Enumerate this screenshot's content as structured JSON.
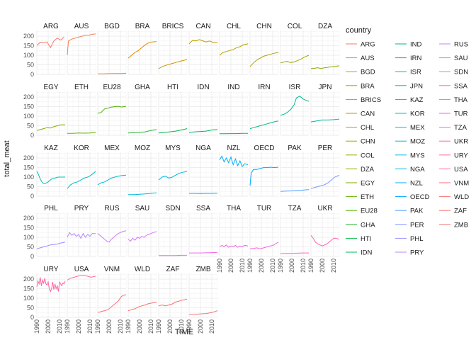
{
  "chart_data": {
    "type": "line",
    "facet": "wrap",
    "xlabel": "TIME",
    "ylabel": "total_meat",
    "xlim": [
      1990,
      2015
    ],
    "ylim": [
      0,
      230
    ],
    "x_ticks": [
      1990,
      2000,
      2010
    ],
    "y_ticks": [
      0,
      50,
      100,
      150,
      200
    ],
    "x_tick_labels": [
      "1990",
      "2000",
      "2010"
    ],
    "y_tick_labels": [
      "0",
      "50",
      "100",
      "150",
      "200"
    ],
    "grid": true,
    "legend_title": "country",
    "legend_position": "right",
    "series": [
      {
        "name": "ARG",
        "color": "#F8766D",
        "x": [
          1990,
          1993,
          1996,
          1999,
          2002,
          2005,
          2008,
          2011,
          2014
        ],
        "y": [
          152,
          168,
          165,
          170,
          140,
          175,
          190,
          180,
          195
        ]
      },
      {
        "name": "AUS",
        "color": "#F27D52",
        "x": [
          1990,
          1991,
          1994,
          1997,
          2000,
          2003,
          2006,
          2009,
          2012,
          2015
        ],
        "y": [
          100,
          175,
          185,
          190,
          195,
          200,
          205,
          205,
          210,
          212
        ]
      },
      {
        "name": "BGD",
        "color": "#E8853A",
        "x": [
          1990,
          1995,
          2000,
          2005,
          2010,
          2015
        ],
        "y": [
          3,
          3,
          4,
          4,
          5,
          6
        ]
      },
      {
        "name": "BRA",
        "color": "#DE8C00",
        "x": [
          1990,
          1993,
          1996,
          1999,
          2002,
          2005,
          2008,
          2011,
          2015
        ],
        "y": [
          85,
          100,
          115,
          125,
          140,
          155,
          165,
          170,
          172
        ]
      },
      {
        "name": "BRICS",
        "color": "#D09400",
        "x": [
          1990,
          1993,
          1996,
          1999,
          2002,
          2005,
          2008,
          2011,
          2015
        ],
        "y": [
          30,
          40,
          47,
          52,
          57,
          62,
          67,
          72,
          78
        ]
      },
      {
        "name": "CAN",
        "color": "#C19A00",
        "x": [
          1990,
          1993,
          1996,
          1999,
          2002,
          2005,
          2008,
          2011,
          2015
        ],
        "y": [
          160,
          178,
          175,
          182,
          176,
          170,
          175,
          168,
          165
        ]
      },
      {
        "name": "CHL",
        "color": "#B79F00",
        "x": [
          1990,
          1993,
          1996,
          1999,
          2002,
          2005,
          2008,
          2011,
          2015
        ],
        "y": [
          100,
          115,
          120,
          125,
          130,
          140,
          145,
          155,
          160
        ]
      },
      {
        "name": "CHN",
        "color": "#ABA300",
        "x": [
          1990,
          1993,
          1996,
          1999,
          2002,
          2005,
          2008,
          2011,
          2015
        ],
        "y": [
          40,
          60,
          75,
          85,
          95,
          100,
          105,
          110,
          115
        ]
      },
      {
        "name": "COL",
        "color": "#9CA700",
        "x": [
          1990,
          1993,
          1996,
          1999,
          2002,
          2005,
          2008,
          2011,
          2015
        ],
        "y": [
          60,
          65,
          68,
          62,
          65,
          72,
          80,
          90,
          100
        ]
      },
      {
        "name": "DZA",
        "color": "#8AAB00",
        "x": [
          1990,
          1993,
          1996,
          1999,
          2002,
          2005,
          2008,
          2011,
          2015
        ],
        "y": [
          30,
          32,
          35,
          30,
          35,
          37,
          40,
          42,
          45
        ]
      },
      {
        "name": "EGY",
        "color": "#7CAE00",
        "x": [
          1990,
          1993,
          1996,
          1999,
          2002,
          2005,
          2008,
          2011,
          2015
        ],
        "y": [
          25,
          30,
          35,
          40,
          38,
          45,
          50,
          55,
          55
        ]
      },
      {
        "name": "ETH",
        "color": "#66B100",
        "x": [
          1990,
          1995,
          2000,
          2005,
          2010,
          2015
        ],
        "y": [
          10,
          10,
          12,
          11,
          12,
          14
        ]
      },
      {
        "name": "EU28",
        "color": "#4EB300",
        "x": [
          1990,
          1993,
          1996,
          1999,
          2002,
          2005,
          2008,
          2011,
          2015
        ],
        "y": [
          115,
          120,
          138,
          142,
          148,
          150,
          152,
          148,
          152
        ]
      },
      {
        "name": "GHA",
        "color": "#2BB534",
        "x": [
          1990,
          1995,
          2000,
          2005,
          2010,
          2015
        ],
        "y": [
          12,
          14,
          15,
          18,
          25,
          30
        ]
      },
      {
        "name": "HTI",
        "color": "#00B649",
        "x": [
          1990,
          1995,
          2000,
          2005,
          2010,
          2015
        ],
        "y": [
          12,
          15,
          18,
          22,
          28,
          35
        ]
      },
      {
        "name": "IDN",
        "color": "#00B75F",
        "x": [
          1990,
          1995,
          2000,
          2005,
          2010,
          2015
        ],
        "y": [
          15,
          18,
          20,
          22,
          28,
          30
        ]
      },
      {
        "name": "IND",
        "color": "#00B872",
        "x": [
          1990,
          1995,
          2000,
          2005,
          2010,
          2015
        ],
        "y": [
          8,
          8,
          9,
          9,
          10,
          10
        ]
      },
      {
        "name": "IRN",
        "color": "#00B984",
        "x": [
          1990,
          1993,
          1996,
          1999,
          2002,
          2005,
          2008,
          2011,
          2015
        ],
        "y": [
          35,
          40,
          45,
          50,
          55,
          60,
          65,
          70,
          75
        ]
      },
      {
        "name": "ISR",
        "color": "#00BA95",
        "x": [
          1990,
          1993,
          1996,
          1999,
          2002,
          2004,
          2007,
          2010,
          2013,
          2015
        ],
        "y": [
          105,
          110,
          120,
          135,
          160,
          195,
          205,
          190,
          182,
          178
        ]
      },
      {
        "name": "JPN",
        "color": "#00BBA5",
        "x": [
          1990,
          1995,
          2000,
          2005,
          2010,
          2015
        ],
        "y": [
          70,
          75,
          80,
          80,
          82,
          85
        ]
      },
      {
        "name": "KAZ",
        "color": "#00BCB4",
        "x": [
          1990,
          1991,
          1993,
          1995,
          1997,
          2000,
          2003,
          2006,
          2009,
          2012,
          2015
        ],
        "y": [
          130,
          120,
          90,
          70,
          65,
          75,
          90,
          95,
          100,
          100,
          100
        ]
      },
      {
        "name": "KOR",
        "color": "#00BCC2",
        "x": [
          1990,
          1993,
          1996,
          1999,
          2002,
          2005,
          2008,
          2011,
          2015
        ],
        "y": [
          40,
          60,
          70,
          75,
          85,
          95,
          100,
          110,
          130
        ]
      },
      {
        "name": "MEX",
        "color": "#00BBCF",
        "x": [
          1990,
          1993,
          1996,
          1999,
          2002,
          2005,
          2008,
          2011,
          2015
        ],
        "y": [
          60,
          70,
          75,
          85,
          95,
          100,
          105,
          108,
          110
        ]
      },
      {
        "name": "MOZ",
        "color": "#00B9DC",
        "x": [
          1990,
          1995,
          2000,
          2005,
          2010,
          2015
        ],
        "y": [
          8,
          8,
          10,
          12,
          15,
          18
        ]
      },
      {
        "name": "MYS",
        "color": "#00B6E8",
        "x": [
          1990,
          1993,
          1996,
          1999,
          2002,
          2005,
          2008,
          2011,
          2015
        ],
        "y": [
          85,
          100,
          105,
          95,
          100,
          110,
          120,
          125,
          130
        ]
      },
      {
        "name": "NGA",
        "color": "#00B2F3",
        "x": [
          1990,
          1995,
          2000,
          2005,
          2010,
          2015
        ],
        "y": [
          15,
          15,
          14,
          15,
          15,
          16
        ]
      },
      {
        "name": "NZL",
        "color": "#00ADFA",
        "x": [
          1990,
          1992,
          1994,
          1996,
          1998,
          2000,
          2002,
          2004,
          2006,
          2008,
          2010,
          2012,
          2015
        ],
        "y": [
          190,
          210,
          180,
          200,
          175,
          205,
          165,
          195,
          160,
          185,
          155,
          170,
          165
        ]
      },
      {
        "name": "OECD",
        "color": "#00A6FF",
        "x": [
          1990,
          1991,
          1993,
          1996,
          1999,
          2002,
          2005,
          2008,
          2011,
          2015
        ],
        "y": [
          55,
          120,
          140,
          140,
          145,
          150,
          150,
          152,
          150,
          152
        ]
      },
      {
        "name": "PAK",
        "color": "#529EFF",
        "x": [
          1990,
          1995,
          2000,
          2005,
          2010,
          2015
        ],
        "y": [
          25,
          27,
          28,
          30,
          32,
          35
        ]
      },
      {
        "name": "PER",
        "color": "#7B95FF",
        "x": [
          1990,
          1993,
          1996,
          1999,
          2002,
          2005,
          2008,
          2011,
          2015
        ],
        "y": [
          40,
          45,
          50,
          55,
          60,
          70,
          85,
          100,
          110
        ]
      },
      {
        "name": "PHL",
        "color": "#9A8DFF",
        "x": [
          1990,
          1993,
          1996,
          1999,
          2002,
          2005,
          2008,
          2011,
          2015
        ],
        "y": [
          40,
          45,
          50,
          55,
          60,
          62,
          65,
          70,
          75
        ]
      },
      {
        "name": "PRY",
        "color": "#B385FF",
        "x": [
          1990,
          1992,
          1994,
          1996,
          1998,
          2000,
          2002,
          2004,
          2006,
          2008,
          2010,
          2012,
          2015
        ],
        "y": [
          100,
          125,
          110,
          120,
          105,
          115,
          95,
          120,
          100,
          115,
          105,
          120,
          120
        ]
      },
      {
        "name": "RUS",
        "color": "#C77CFF",
        "x": [
          1990,
          1992,
          1994,
          1996,
          1998,
          2000,
          2002,
          2004,
          2006,
          2008,
          2010,
          2012,
          2015
        ],
        "y": [
          120,
          110,
          100,
          90,
          80,
          75,
          90,
          100,
          110,
          120,
          125,
          130,
          135
        ]
      },
      {
        "name": "SAU",
        "color": "#D774FD",
        "x": [
          1990,
          1992,
          1994,
          1996,
          1998,
          2000,
          2002,
          2004,
          2006,
          2008,
          2010,
          2012,
          2015
        ],
        "y": [
          90,
          80,
          95,
          85,
          100,
          95,
          105,
          100,
          110,
          115,
          120,
          125,
          130
        ]
      },
      {
        "name": "SDN",
        "color": "#E46DF6",
        "x": [
          1990,
          1995,
          2000,
          2005,
          2010,
          2015
        ],
        "y": [
          5,
          5,
          5,
          5,
          6,
          6
        ]
      },
      {
        "name": "SSA",
        "color": "#EE67EC",
        "x": [
          1990,
          1995,
          2000,
          2005,
          2010,
          2015
        ],
        "y": [
          18,
          18,
          18,
          19,
          20,
          21
        ]
      },
      {
        "name": "THA",
        "color": "#F663E0",
        "x": [
          1990,
          1992,
          1994,
          1996,
          1998,
          2000,
          2002,
          2004,
          2006,
          2008,
          2010,
          2012,
          2015
        ],
        "y": [
          50,
          58,
          52,
          60,
          48,
          55,
          50,
          58,
          48,
          55,
          50,
          58,
          55
        ]
      },
      {
        "name": "TUR",
        "color": "#FC61D3",
        "x": [
          1990,
          1993,
          1996,
          1999,
          2002,
          2005,
          2008,
          2011,
          2015
        ],
        "y": [
          40,
          42,
          45,
          40,
          45,
          50,
          55,
          60,
          75
        ]
      },
      {
        "name": "TZA",
        "color": "#FF61C4",
        "x": [
          1990,
          1995,
          2000,
          2005,
          2010,
          2015
        ],
        "y": [
          15,
          16,
          16,
          17,
          18,
          18
        ]
      },
      {
        "name": "UKR",
        "color": "#FF63B4",
        "x": [
          1990,
          1992,
          1994,
          1996,
          1998,
          2000,
          2002,
          2004,
          2006,
          2008,
          2010,
          2012,
          2015
        ],
        "y": [
          110,
          95,
          75,
          65,
          60,
          55,
          60,
          65,
          75,
          85,
          95,
          95,
          90
        ]
      },
      {
        "name": "URY",
        "color": "#FF66A3",
        "x": [
          1990,
          1991,
          1992,
          1993,
          1994,
          1995,
          1996,
          1997,
          1998,
          1999,
          2000,
          2001,
          2002,
          2003,
          2004,
          2005,
          2006,
          2007,
          2008,
          2009,
          2010,
          2011,
          2012,
          2013,
          2014,
          2015
        ],
        "y": [
          160,
          190,
          175,
          210,
          165,
          195,
          180,
          205,
          175,
          170,
          185,
          150,
          135,
          150,
          185,
          145,
          175,
          150,
          165,
          135,
          185,
          175,
          165,
          180,
          175,
          190
        ]
      },
      {
        "name": "USA",
        "color": "#FF6A92",
        "x": [
          1990,
          1993,
          1996,
          1999,
          2002,
          2005,
          2008,
          2011,
          2015
        ],
        "y": [
          195,
          205,
          210,
          215,
          220,
          220,
          215,
          210,
          215
        ]
      },
      {
        "name": "VNM",
        "color": "#FF6E7F",
        "x": [
          1990,
          1993,
          1996,
          1999,
          2002,
          2005,
          2008,
          2011,
          2015
        ],
        "y": [
          25,
          30,
          35,
          40,
          55,
          70,
          85,
          110,
          120
        ]
      },
      {
        "name": "WLD",
        "color": "#FA6F6B",
        "x": [
          1990,
          1993,
          1996,
          1999,
          2002,
          2005,
          2008,
          2011,
          2015
        ],
        "y": [
          35,
          40,
          45,
          55,
          60,
          65,
          72,
          75,
          78
        ]
      },
      {
        "name": "ZAF",
        "color": "#F4726F",
        "x": [
          1990,
          1993,
          1996,
          1999,
          2002,
          2005,
          2008,
          2011,
          2015
        ],
        "y": [
          60,
          65,
          60,
          65,
          70,
          80,
          85,
          90,
          95
        ]
      },
      {
        "name": "ZMB",
        "color": "#EE7673",
        "x": [
          1990,
          1995,
          2000,
          2005,
          2010,
          2015
        ],
        "y": [
          15,
          16,
          18,
          20,
          25,
          35
        ]
      }
    ]
  }
}
